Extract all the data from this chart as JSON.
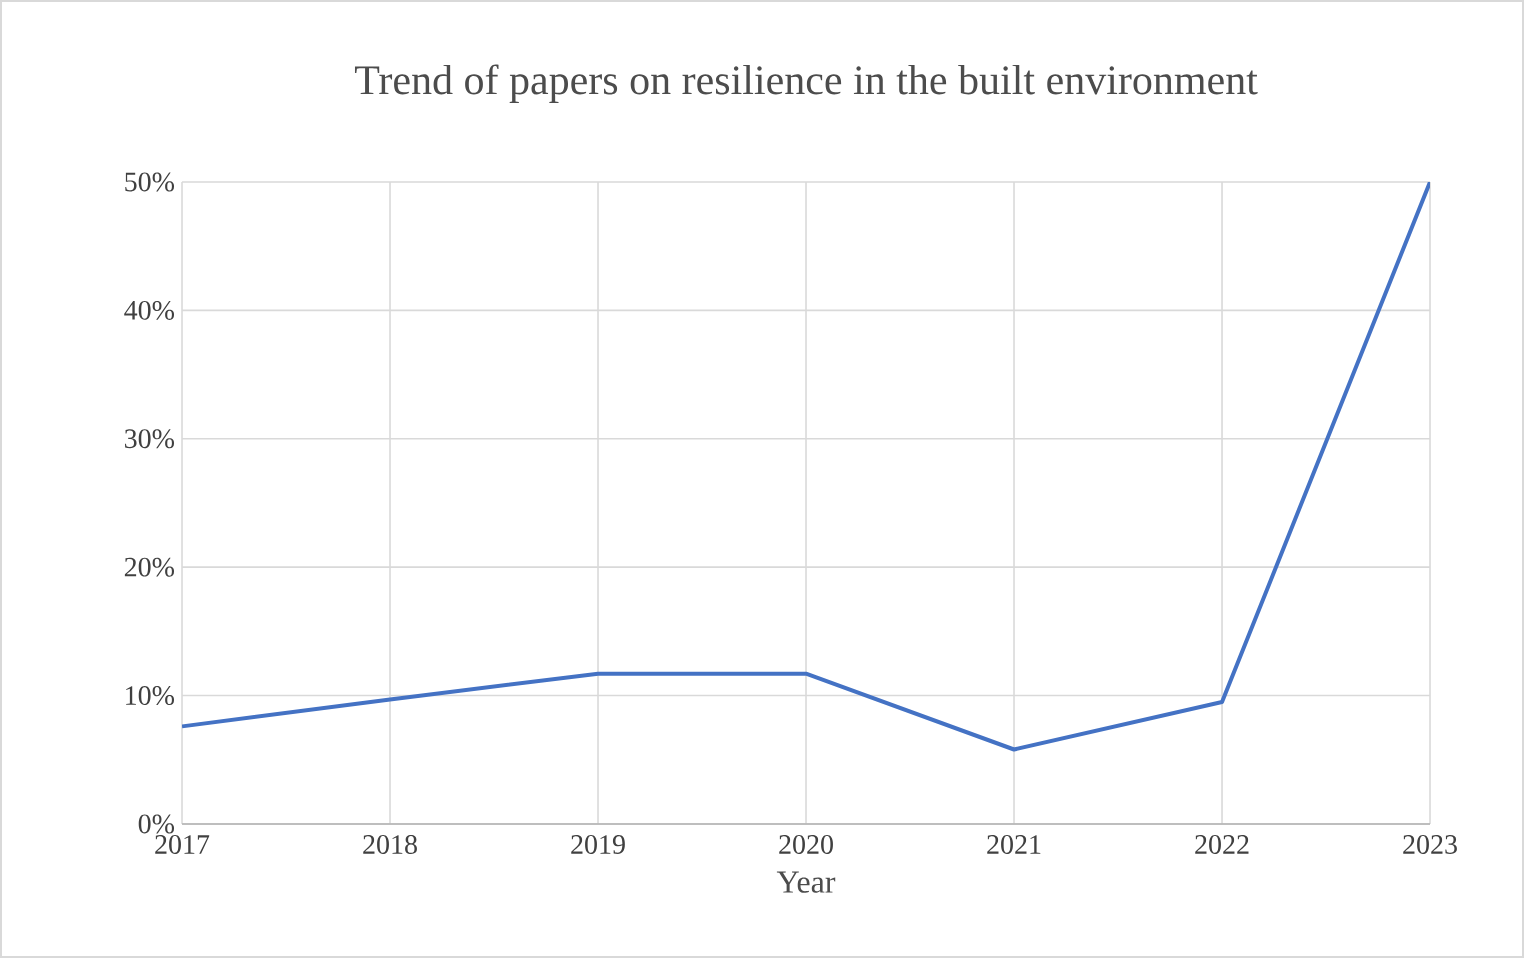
{
  "chart_data": {
    "type": "line",
    "title": "Trend of papers on resilience in the built environment",
    "xlabel": "Year",
    "x": [
      2017,
      2018,
      2019,
      2020,
      2021,
      2022,
      2023
    ],
    "values": [
      7.6,
      9.7,
      11.7,
      11.7,
      5.8,
      9.5,
      50
    ],
    "color": "#4472c4",
    "marker": "none",
    "xlim": [
      2017,
      2023
    ],
    "xticks": [
      2017,
      2018,
      2019,
      2020,
      2021,
      2022,
      2023
    ],
    "ylim": [
      0,
      50
    ],
    "yticks": [
      {
        "value": 0,
        "label": "0%"
      },
      {
        "value": 10,
        "label": "10%"
      },
      {
        "value": 20,
        "label": "20%"
      },
      {
        "value": 30,
        "label": "30%"
      },
      {
        "value": 40,
        "label": "40%"
      },
      {
        "value": 50,
        "label": "50%"
      }
    ],
    "grid": true
  }
}
